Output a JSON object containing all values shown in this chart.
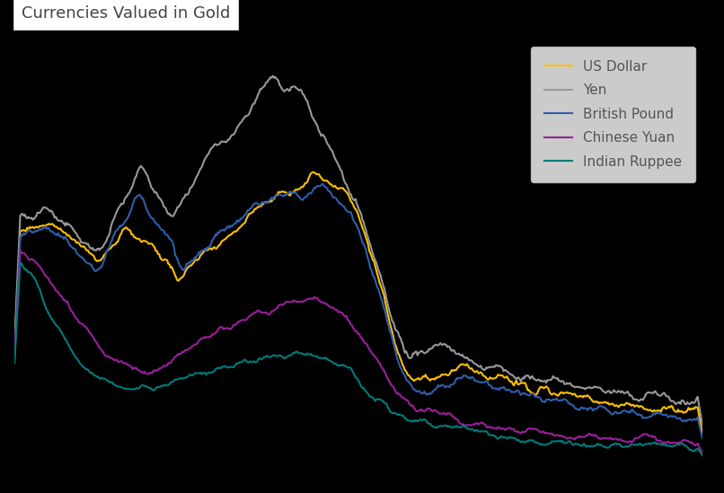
{
  "title": "Currencies Valued in Gold",
  "title_fontsize": 13,
  "background_color": "#000000",
  "title_box_color": "#ffffff",
  "legend_bg_color": "#ffffff",
  "series": {
    "US Dollar": {
      "color": "#FFC000",
      "linewidth": 1.5
    },
    "Yen": {
      "color": "#999999",
      "linewidth": 1.5
    },
    "British Pound": {
      "color": "#2E5FAC",
      "linewidth": 1.5
    },
    "Chinese Yuan": {
      "color": "#9B1F9B",
      "linewidth": 1.5
    },
    "Indian Ruppee": {
      "color": "#007B7B",
      "linewidth": 1.5
    }
  },
  "n_points": 600,
  "legend_fontsize": 11
}
